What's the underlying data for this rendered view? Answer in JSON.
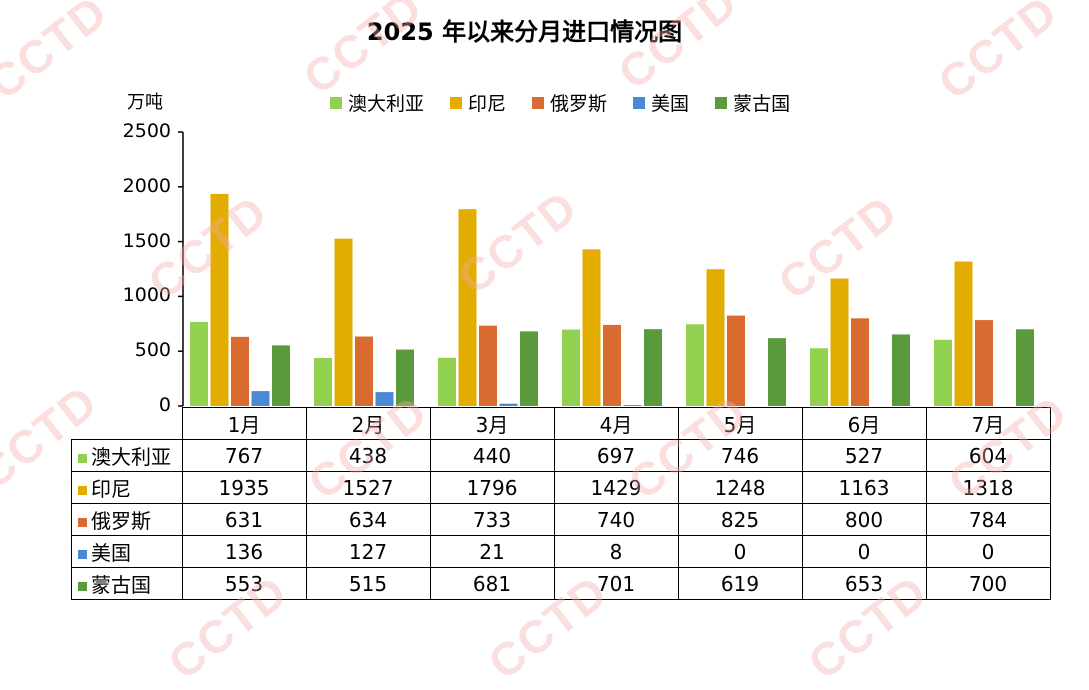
{
  "chart_data": {
    "type": "bar",
    "title": "2025 年以来分月进口情况图",
    "ylabel": "万吨",
    "ylim": [
      0,
      2500
    ],
    "yticks": [
      0,
      500,
      1000,
      1500,
      2000,
      2500
    ],
    "categories": [
      "1月",
      "2月",
      "3月",
      "4月",
      "5月",
      "6月",
      "7月"
    ],
    "series": [
      {
        "name": "澳大利亚",
        "color": "#92d050",
        "values": [
          767,
          438,
          440,
          697,
          746,
          527,
          604
        ]
      },
      {
        "name": "印尼",
        "color": "#e3ac00",
        "values": [
          1935,
          1527,
          1796,
          1429,
          1248,
          1163,
          1318
        ]
      },
      {
        "name": "俄罗斯",
        "color": "#d86c30",
        "values": [
          631,
          634,
          733,
          740,
          825,
          800,
          784
        ]
      },
      {
        "name": "美国",
        "color": "#4a89d6",
        "values": [
          136,
          127,
          21,
          8,
          0,
          0,
          0
        ]
      },
      {
        "name": "蒙古国",
        "color": "#5b9a3c",
        "values": [
          553,
          515,
          681,
          701,
          619,
          653,
          700
        ]
      }
    ],
    "grid": false,
    "legend": "top"
  },
  "watermark": "CCTD"
}
